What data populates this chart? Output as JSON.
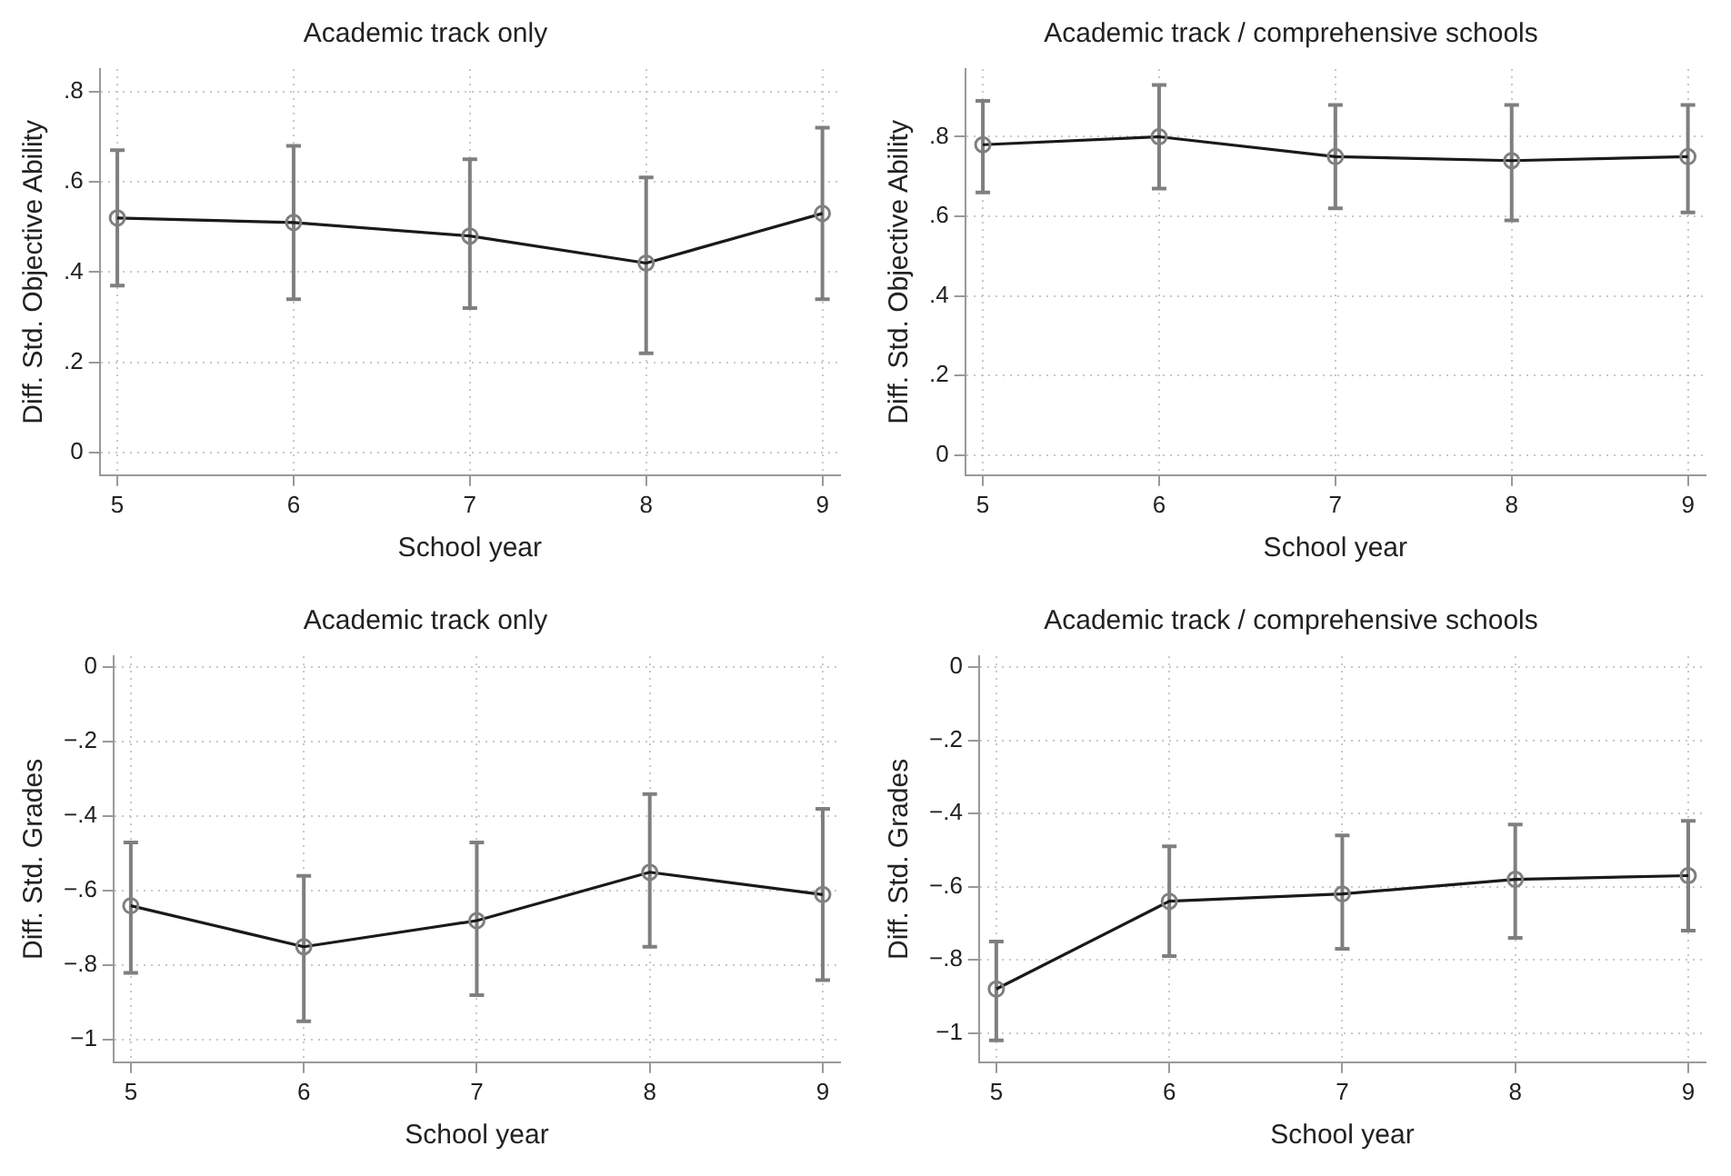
{
  "chart_data": [
    {
      "type": "line",
      "title": "Academic track only",
      "xlabel": "School year",
      "ylabel": "Diff. Std. Objective Ability",
      "x": [
        5,
        6,
        7,
        8,
        9
      ],
      "xlim": [
        4.9,
        9.1
      ],
      "xticks": [
        5,
        6,
        7,
        8,
        9
      ],
      "ylim": [
        -0.05,
        0.85
      ],
      "yticks": [
        {
          "value": 0,
          "label": "0"
        },
        {
          "value": 0.2,
          "label": ".2"
        },
        {
          "value": 0.4,
          "label": ".4"
        },
        {
          "value": 0.6,
          "label": ".6"
        },
        {
          "value": 0.8,
          "label": ".8"
        }
      ],
      "grid": true,
      "marker": "circle",
      "line_style": "solid",
      "series": [
        {
          "color": "#1a1a1a",
          "values": [
            0.52,
            0.51,
            0.48,
            0.42,
            0.53
          ],
          "errors": [
            [
              0.37,
              0.67
            ],
            [
              0.34,
              0.68
            ],
            [
              0.32,
              0.65
            ],
            [
              0.22,
              0.61
            ],
            [
              0.34,
              0.72
            ]
          ]
        }
      ]
    },
    {
      "type": "line",
      "title": "Academic track / comprehensive schools",
      "xlabel": "School year",
      "ylabel": "Diff. Std. Objective Ability",
      "x": [
        5,
        6,
        7,
        8,
        9
      ],
      "xlim": [
        4.9,
        9.1
      ],
      "xticks": [
        5,
        6,
        7,
        8,
        9
      ],
      "ylim": [
        -0.05,
        0.97
      ],
      "yticks": [
        {
          "value": 0,
          "label": "0"
        },
        {
          "value": 0.2,
          "label": ".2"
        },
        {
          "value": 0.4,
          "label": ".4"
        },
        {
          "value": 0.6,
          "label": ".6"
        },
        {
          "value": 0.8,
          "label": ".8"
        }
      ],
      "grid": true,
      "marker": "circle",
      "line_style": "solid",
      "series": [
        {
          "color": "#1a1a1a",
          "values": [
            0.78,
            0.8,
            0.75,
            0.74,
            0.75
          ],
          "errors": [
            [
              0.66,
              0.89
            ],
            [
              0.67,
              0.93
            ],
            [
              0.62,
              0.88
            ],
            [
              0.59,
              0.88
            ],
            [
              0.61,
              0.88
            ]
          ]
        }
      ]
    },
    {
      "type": "line",
      "title": "Academic track only",
      "xlabel": "School year",
      "ylabel": "Diff. Std. Grades",
      "x": [
        5,
        6,
        7,
        8,
        9
      ],
      "xlim": [
        4.9,
        9.1
      ],
      "xticks": [
        5,
        6,
        7,
        8,
        9
      ],
      "ylim": [
        -1.06,
        0.03
      ],
      "yticks": [
        {
          "value": -1,
          "label": "−1"
        },
        {
          "value": -0.8,
          "label": "−.8"
        },
        {
          "value": -0.6,
          "label": "−.6"
        },
        {
          "value": -0.4,
          "label": "−.4"
        },
        {
          "value": -0.2,
          "label": "−.2"
        },
        {
          "value": 0,
          "label": "0"
        }
      ],
      "grid": true,
      "marker": "circle",
      "line_style": "solid",
      "series": [
        {
          "color": "#1a1a1a",
          "values": [
            -0.64,
            -0.75,
            -0.68,
            -0.55,
            -0.61
          ],
          "errors": [
            [
              -0.82,
              -0.47
            ],
            [
              -0.95,
              -0.56
            ],
            [
              -0.88,
              -0.47
            ],
            [
              -0.75,
              -0.34
            ],
            [
              -0.84,
              -0.38
            ]
          ]
        }
      ]
    },
    {
      "type": "line",
      "title": "Academic track / comprehensive schools",
      "xlabel": "School year",
      "ylabel": "Diff. Std. Grades",
      "x": [
        5,
        6,
        7,
        8,
        9
      ],
      "xlim": [
        4.9,
        9.1
      ],
      "xticks": [
        5,
        6,
        7,
        8,
        9
      ],
      "ylim": [
        -1.08,
        0.03
      ],
      "yticks": [
        {
          "value": -1,
          "label": "−1"
        },
        {
          "value": -0.8,
          "label": "−.8"
        },
        {
          "value": -0.6,
          "label": "−.6"
        },
        {
          "value": -0.4,
          "label": "−.4"
        },
        {
          "value": -0.2,
          "label": "−.2"
        },
        {
          "value": 0,
          "label": "0"
        }
      ],
      "grid": true,
      "marker": "circle",
      "line_style": "solid",
      "series": [
        {
          "color": "#1a1a1a",
          "values": [
            -0.88,
            -0.64,
            -0.62,
            -0.58,
            -0.57
          ],
          "errors": [
            [
              -1.02,
              -0.75
            ],
            [
              -0.79,
              -0.49
            ],
            [
              -0.77,
              -0.46
            ],
            [
              -0.74,
              -0.43
            ],
            [
              -0.72,
              -0.42
            ]
          ]
        }
      ]
    }
  ]
}
